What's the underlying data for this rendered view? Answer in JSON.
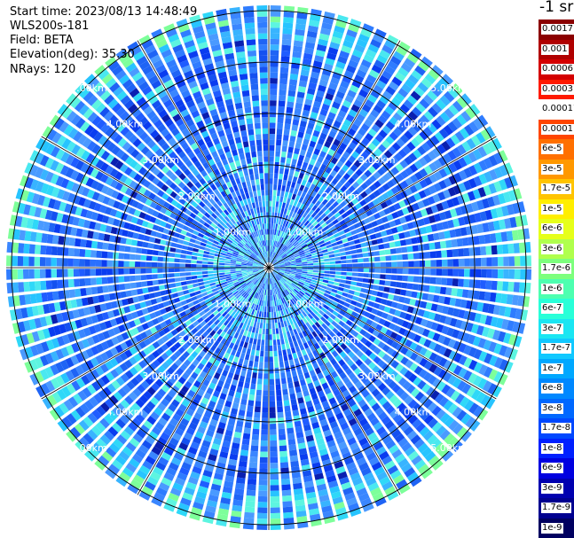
{
  "header": {
    "start_time": "Start time: 2023/08/13 14:48:49",
    "instrument": "WLS200s-181",
    "field": "Field: BETA",
    "elevation": "Elevation(deg): 35.30",
    "nrays": "NRays: 120"
  },
  "colorbar": {
    "unit_label": "-1 sr",
    "levels": [
      {
        "label": "0.0017",
        "color": "#8b0000"
      },
      {
        "label": "0.001",
        "color": "#b00000"
      },
      {
        "label": "0.0006",
        "color": "#d40000"
      },
      {
        "label": "0.0003",
        "color": "#ff1a00"
      },
      {
        "label": "0.00017",
        "color": "#ffffff"
      },
      {
        "label": "0.0001",
        "color": "#ff4500"
      },
      {
        "label": "6e-5",
        "color": "#ff7000"
      },
      {
        "label": "3e-5",
        "color": "#ff9800"
      },
      {
        "label": "1.7e-5",
        "color": "#ffc400"
      },
      {
        "label": "1e-5",
        "color": "#ffee00"
      },
      {
        "label": "6e-6",
        "color": "#e6ff1a"
      },
      {
        "label": "3e-6",
        "color": "#b0ff4d"
      },
      {
        "label": "1.7e-6",
        "color": "#7dff7d"
      },
      {
        "label": "1e-6",
        "color": "#4dffb0"
      },
      {
        "label": "6e-7",
        "color": "#29ffd8"
      },
      {
        "label": "3e-7",
        "color": "#1ae6f2"
      },
      {
        "label": "1.7e-7",
        "color": "#10c8ff"
      },
      {
        "label": "1e-7",
        "color": "#00a8ff"
      },
      {
        "label": "6e-8",
        "color": "#0088ff"
      },
      {
        "label": "3e-8",
        "color": "#0068ff"
      },
      {
        "label": "1.7e-8",
        "color": "#0048ff"
      },
      {
        "label": "1e-8",
        "color": "#0020ff"
      },
      {
        "label": "6e-9",
        "color": "#0000e0"
      },
      {
        "label": "3e-9",
        "color": "#0000b0"
      },
      {
        "label": "1.7e-9",
        "color": "#000090"
      },
      {
        "label": "1e-9",
        "color": "#000060"
      }
    ]
  },
  "chart_data": {
    "type": "heatmap",
    "projection": "polar (PPI)",
    "field": "BETA",
    "elevation_deg": 35.3,
    "n_rays": 120,
    "range_max_km": 5.0,
    "range_rings_km": [
      1.0,
      2.0,
      3.0,
      4.0,
      5.0
    ],
    "range_ring_labels": [
      "1.00km",
      "2.00km",
      "3.00km",
      "4.00km",
      "5.00km"
    ],
    "azimuth_lines_deg": [
      0,
      30,
      60,
      90,
      120,
      150,
      180,
      210,
      240,
      270,
      300,
      330
    ],
    "colorscale": "log, 1e-9 to 0.0017 sr-1",
    "dominant_values": "mostly 3e-9 to 1e-7 (blue), higher 1e-7 to 1e-6 (cyan) in outer ring and center"
  }
}
